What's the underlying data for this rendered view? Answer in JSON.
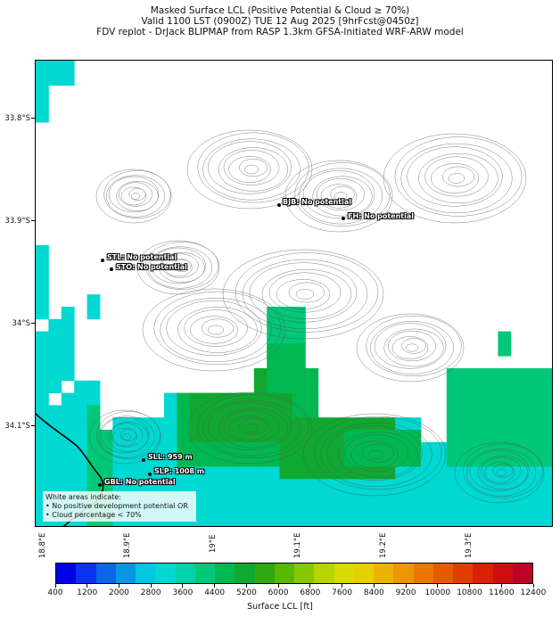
{
  "title": {
    "line1": "Masked Surface LCL (Positive Potential & Cloud ≥ 70%)",
    "line2": "Valid 1100 LST (0900Z) TUE 12 Aug 2025 [9hrFcst@0450z]",
    "line3": "FDV replot - DrJack BLIPMAP from RASP 1.3km GFSA-Initiated WRF-ARW model"
  },
  "axes": {
    "latitudes": [
      "33.8°S",
      "33.9°S",
      "34°S",
      "34.1°S"
    ],
    "longitudes": [
      "18.8°E",
      "18.9°E",
      "19°E",
      "19.1°E",
      "19.2°E",
      "19.3°E"
    ]
  },
  "stations": [
    {
      "id": "BJB",
      "label": "BJB: No potential"
    },
    {
      "id": "FH",
      "label": "FH: No potential"
    },
    {
      "id": "STL",
      "label": "STL: No potential"
    },
    {
      "id": "STO",
      "label": "STO: No potential"
    },
    {
      "id": "SLL",
      "label": "SLL: 959 m"
    },
    {
      "id": "SLP",
      "label": "SLP: 1008 m"
    },
    {
      "id": "GBL",
      "label": "GBL: No potential"
    }
  ],
  "note": {
    "heading": "White areas indicate:",
    "line1": "• No positive development potential OR",
    "line2": "• Cloud percentage < 70%"
  },
  "colorbar": {
    "title": "Surface LCL [ft]",
    "ticks": [
      "400",
      "1200",
      "2000",
      "2800",
      "3600",
      "4400",
      "5200",
      "6000",
      "6800",
      "7600",
      "8400",
      "9200",
      "10000",
      "10800",
      "11600",
      "12400"
    ],
    "colors": [
      "#0000e6",
      "#0a32f0",
      "#0c64ea",
      "#0896e2",
      "#00c8e0",
      "#00d8d2",
      "#00d2a8",
      "#00c878",
      "#00b850",
      "#10a830",
      "#30a810",
      "#58b800",
      "#88c800",
      "#b8d400",
      "#d8dc00",
      "#e6d000",
      "#ecb400",
      "#ec9600",
      "#ea7800",
      "#e65a00",
      "#e23c00",
      "#da2000",
      "#d00c10",
      "#c00028"
    ]
  }
}
